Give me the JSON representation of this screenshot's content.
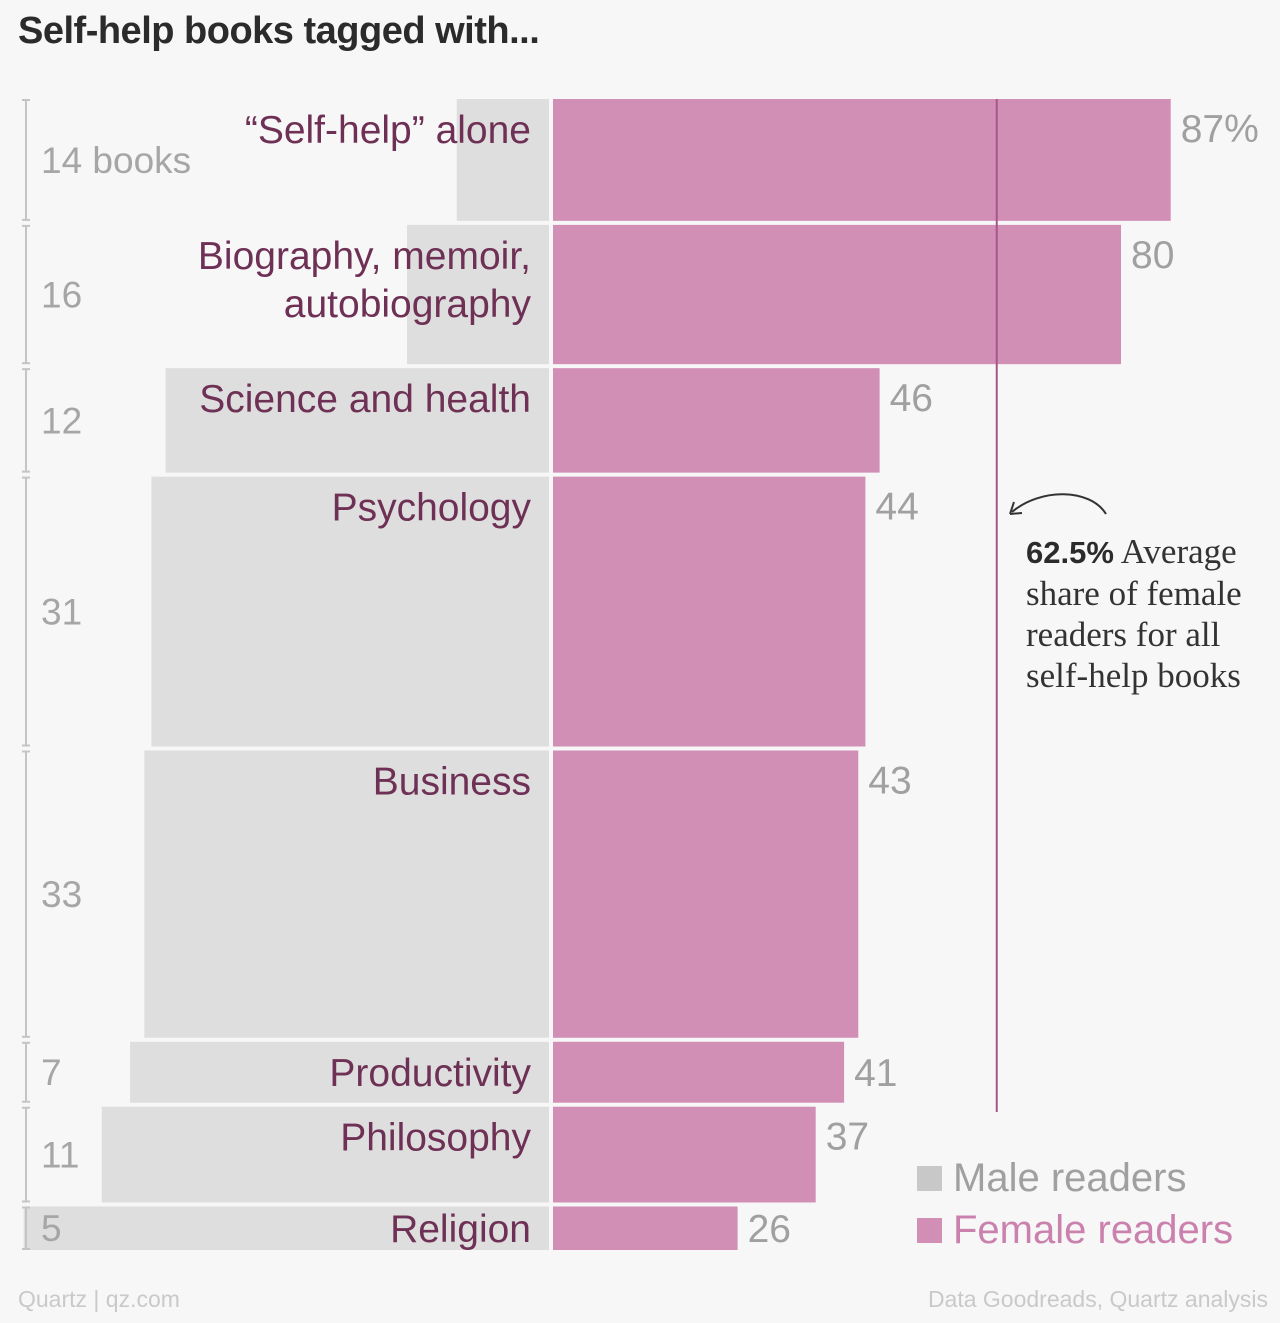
{
  "title": "Self-help books tagged with...",
  "chart_data": {
    "type": "bar",
    "layout": "diverging horizontal bars; bar height proportional to number of books",
    "categories": [
      [
        "“Self-help” alone"
      ],
      [
        "Biography, memoir,",
        "autobiography"
      ],
      [
        "Science and health"
      ],
      [
        "Psychology"
      ],
      [
        "Business"
      ],
      [
        "Productivity"
      ],
      [
        "Philosophy"
      ],
      [
        "Religion"
      ]
    ],
    "book_count_labels": [
      "14 books",
      "16",
      "12",
      "31",
      "33",
      "7",
      "11",
      "5"
    ],
    "book_counts": [
      14,
      16,
      12,
      31,
      33,
      7,
      11,
      5
    ],
    "value_labels": [
      "87%",
      "80",
      "46",
      "44",
      "43",
      "41",
      "37",
      "26"
    ],
    "series": [
      {
        "name": "Female readers",
        "values": [
          87,
          80,
          46,
          44,
          43,
          41,
          37,
          26
        ]
      },
      {
        "name": "Male readers",
        "values": [
          13,
          20,
          54,
          56,
          57,
          59,
          63,
          74
        ]
      }
    ],
    "xlim": [
      0,
      100
    ],
    "reference_line": {
      "value": 62.5
    },
    "annotation": {
      "value": "62.5%",
      "text": "Average share of female readers for all self-help books"
    }
  },
  "legend": {
    "male": "Male readers",
    "female": "Female readers"
  },
  "colors": {
    "male": "#dedede",
    "female": "#d18fb6",
    "category_label": "#6e3155",
    "value_label": "#a0a0a0",
    "reference_line": "#a8568a"
  },
  "footer": {
    "source_left": "Quartz | qz.com",
    "source_right": "Data Goodreads, Quartz analysis"
  }
}
